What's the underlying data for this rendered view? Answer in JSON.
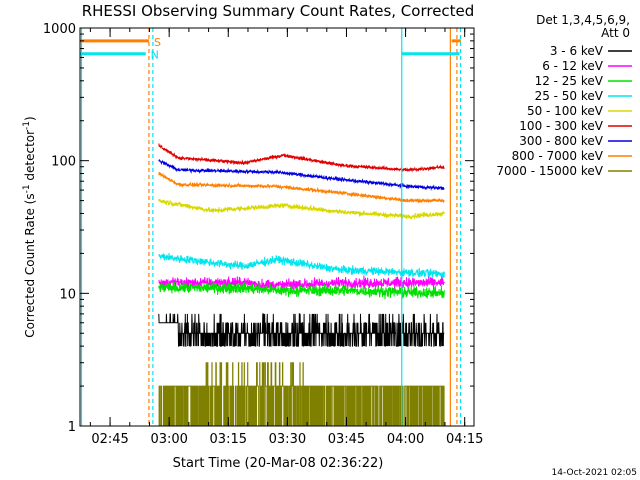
{
  "chart_data": {
    "type": "line",
    "title": "RHESSI Observing Summary Count Rates, Corrected",
    "xlabel": "Start Time (20-Mar-08 02:36:22)",
    "ylabel_parts": [
      "Corrected Count Rate (s",
      "-1",
      " detector",
      "-1",
      ")"
    ],
    "yscale": "log",
    "xlim": [
      0,
      6000
    ],
    "ylim": [
      1,
      1000
    ],
    "x_unit": "seconds since 02:36:22",
    "x_ticks": [
      {
        "t": 458,
        "label": "02:45"
      },
      {
        "t": 1358,
        "label": "03:00"
      },
      {
        "t": 2258,
        "label": "03:15"
      },
      {
        "t": 3158,
        "label": "03:30"
      },
      {
        "t": 4058,
        "label": "03:45"
      },
      {
        "t": 4958,
        "label": "04:00"
      },
      {
        "t": 5858,
        "label": "04:15"
      }
    ],
    "y_ticks": [
      {
        "v": 1,
        "label": "1"
      },
      {
        "v": 10,
        "label": "10"
      },
      {
        "v": 100,
        "label": "100"
      },
      {
        "v": 1000,
        "label": "1000"
      }
    ],
    "legend_header": [
      "Det 1,3,4,5,6,9,",
      "Att 0"
    ],
    "legend_position": "right",
    "data_start": 1200,
    "data_end": 5550,
    "series": [
      {
        "name": "3 - 6 keV",
        "color": "#000000",
        "level": [
          [
            1200,
            6.5
          ],
          [
            1500,
            5.2
          ],
          [
            3000,
            5.2
          ],
          [
            4300,
            4.8
          ],
          [
            5500,
            4.7
          ],
          [
            5550,
            5.6
          ]
        ],
        "noise": 0.12,
        "quant": 1
      },
      {
        "name": "6 - 12 keV",
        "color": "#ff00ff",
        "level": [
          [
            1200,
            12.0
          ],
          [
            2500,
            12.0
          ],
          [
            3000,
            11.5
          ],
          [
            4000,
            12.0
          ],
          [
            5550,
            12.0
          ]
        ],
        "noise": 0.08
      },
      {
        "name": "12 - 25 keV",
        "color": "#00e000",
        "level": [
          [
            1200,
            11.0
          ],
          [
            2500,
            11.0
          ],
          [
            3000,
            10.5
          ],
          [
            4000,
            10.5
          ],
          [
            5550,
            10.0
          ]
        ],
        "noise": 0.08
      },
      {
        "name": "25 - 50 keV",
        "color": "#00e5ee",
        "level": [
          [
            1200,
            19.0
          ],
          [
            2500,
            16.0
          ],
          [
            3000,
            18.0
          ],
          [
            3600,
            16.0
          ],
          [
            4000,
            15.0
          ],
          [
            5550,
            14.0
          ]
        ],
        "noise": 0.06
      },
      {
        "name": "50 - 100 keV",
        "color": "#d8d800",
        "level": [
          [
            1200,
            50.0
          ],
          [
            2000,
            42.0
          ],
          [
            3100,
            46.0
          ],
          [
            4000,
            41.0
          ],
          [
            5000,
            38.0
          ],
          [
            5550,
            40.0
          ]
        ],
        "noise": 0.035
      },
      {
        "name": "100 - 300 keV",
        "color": "#e00000",
        "level": [
          [
            1200,
            130.0
          ],
          [
            1500,
            105.0
          ],
          [
            2500,
            96.0
          ],
          [
            3100,
            110.0
          ],
          [
            4000,
            92.0
          ],
          [
            5000,
            85.0
          ],
          [
            5550,
            90.0
          ]
        ],
        "noise": 0.025
      },
      {
        "name": "300 - 800 keV",
        "color": "#0000e0",
        "level": [
          [
            1200,
            100.0
          ],
          [
            1500,
            85.0
          ],
          [
            3000,
            82.0
          ],
          [
            4000,
            72.0
          ],
          [
            5000,
            64.0
          ],
          [
            5550,
            62.0
          ]
        ],
        "noise": 0.025
      },
      {
        "name": "800 - 7000 keV",
        "color": "#ff7f00",
        "level": [
          [
            1200,
            80.0
          ],
          [
            1500,
            66.0
          ],
          [
            3000,
            64.0
          ],
          [
            4000,
            57.0
          ],
          [
            5000,
            50.0
          ],
          [
            5550,
            50.0
          ]
        ],
        "noise": 0.025
      },
      {
        "name": "7000 - 15000 keV",
        "color": "#808000",
        "level": [
          [
            1200,
            2.0
          ],
          [
            5550,
            2.0
          ]
        ],
        "noise": 0,
        "quant": 1
      }
    ],
    "flag_bars": [
      {
        "name": "S",
        "color": "#ff7f00",
        "y": 800,
        "segments": [
          [
            0,
            1050
          ],
          [
            5660,
            5800
          ]
        ]
      },
      {
        "name": "N",
        "color": "#00e5ee",
        "y": 640,
        "segments": [
          [
            0,
            1000
          ],
          [
            4900,
            5780
          ]
        ]
      }
    ],
    "vertical_lines": [
      {
        "t": 0,
        "color": "#00e5ee",
        "dashed": false
      },
      {
        "t": 1050,
        "color": "#ff7f00",
        "dashed": true
      },
      {
        "t": 1110,
        "color": "#00e5ee",
        "dashed": true
      },
      {
        "t": 4900,
        "color": "#00e5ee",
        "dashed": false
      },
      {
        "t": 5640,
        "color": "#ff7f00",
        "dashed": false
      },
      {
        "t": 5740,
        "color": "#ff7f00",
        "dashed": true
      },
      {
        "t": 5795,
        "color": "#00e5ee",
        "dashed": true
      }
    ]
  },
  "footer": {
    "timestamp": "14-Oct-2021 02:05"
  }
}
